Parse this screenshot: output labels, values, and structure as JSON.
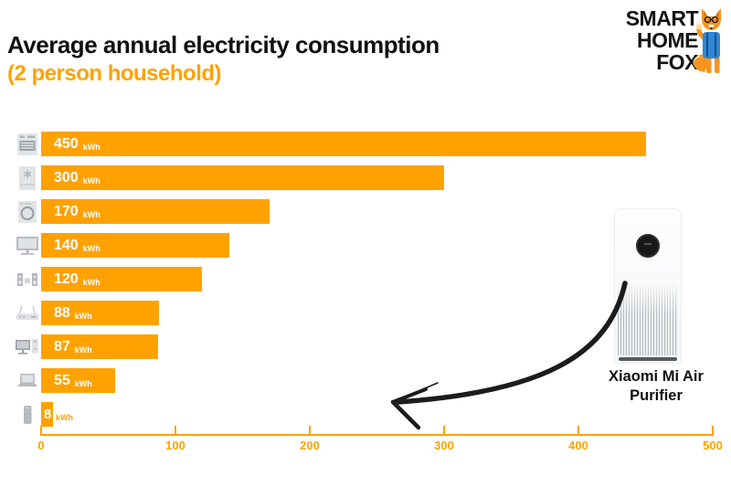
{
  "header": {
    "title": "Average annual electricity consumption",
    "subtitle": "(2 person household)"
  },
  "logo": {
    "lines": [
      "SMART",
      "HOME",
      "FOX"
    ],
    "mascot": "fox-mascot-icon"
  },
  "chart_data": {
    "type": "bar",
    "orientation": "horizontal",
    "title": "Average annual electricity consumption (2 person household)",
    "unit": "kWh",
    "categories": [
      "electric stove",
      "freezer",
      "washing machine",
      "tv",
      "stereo system",
      "wifi router",
      "desktop computer",
      "laptop",
      "smartphone"
    ],
    "icons": [
      "stove-icon",
      "freezer-icon",
      "washing-machine-icon",
      "tv-icon",
      "stereo-icon",
      "router-icon",
      "desktop-computer-icon",
      "laptop-icon",
      "smartphone-icon"
    ],
    "values": [
      450,
      300,
      170,
      140,
      120,
      88,
      87,
      55,
      8
    ],
    "value_labels": [
      "450 kWh",
      "300 kWh",
      "170 kWh",
      "140 kWh",
      "120 kWh",
      "88 kWh",
      "87 kWh",
      "55 kWh",
      "8 kWh"
    ],
    "xlim": [
      0,
      500
    ],
    "x_ticks": [
      0,
      100,
      200,
      300,
      400,
      500
    ],
    "grid": false,
    "legend": false,
    "bar_color": "#FFA200",
    "axis_color": "#FFA200",
    "bar_label_color": "#ffffff"
  },
  "annotation": {
    "lines": [
      "Xiaomi Mi Air",
      "Purifier"
    ],
    "arrow": "hand-drawn arrow from air purifier image to the 8 kWh bar"
  },
  "colors": {
    "accent_orange": "#FFA200",
    "title_black": "#111111",
    "icon_gray": "#c7ccd1",
    "arrow_black": "#1c1c1c"
  }
}
